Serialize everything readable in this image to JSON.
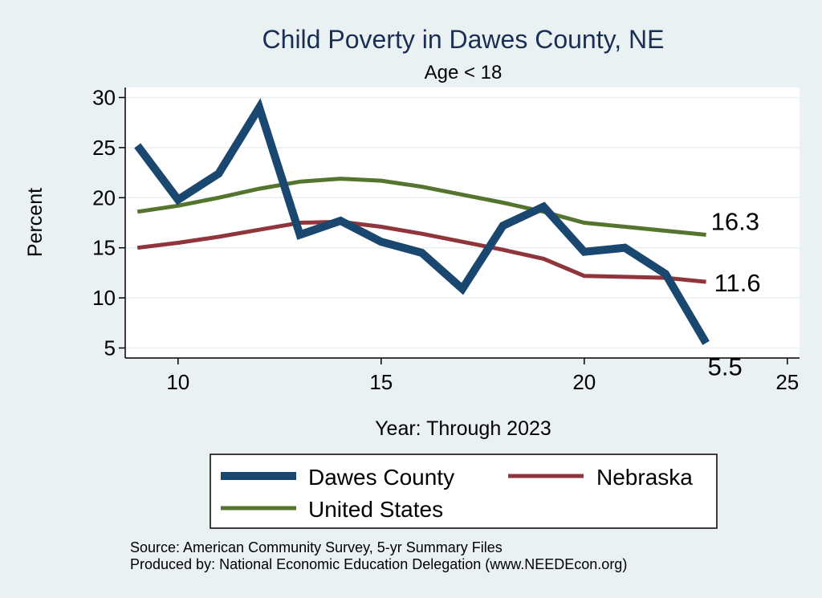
{
  "chart_data": {
    "type": "line",
    "title": "Child Poverty in Dawes County, NE",
    "subtitle": "Age < 18",
    "xlabel": "Year: Through 2023",
    "ylabel": "Percent",
    "xlim": [
      8.7,
      25.3
    ],
    "ylim": [
      4.0,
      31.0
    ],
    "xticks": [
      10,
      15,
      20,
      25
    ],
    "yticks": [
      5,
      10,
      15,
      20,
      25,
      30
    ],
    "x": [
      9,
      10,
      11,
      12,
      13,
      14,
      15,
      16,
      17,
      18,
      19,
      20,
      21,
      22,
      23
    ],
    "series": [
      {
        "name": "Dawes County",
        "color": "#1a476f",
        "values": [
          25.2,
          19.8,
          22.4,
          29.0,
          16.3,
          17.7,
          15.6,
          14.5,
          10.9,
          17.2,
          19.1,
          14.6,
          15.0,
          12.4,
          5.5
        ],
        "end_label": "5.5"
      },
      {
        "name": "Nebraska",
        "color": "#90353b",
        "values": [
          15.0,
          15.5,
          16.1,
          16.8,
          17.5,
          17.6,
          17.1,
          16.4,
          15.6,
          14.8,
          13.9,
          12.2,
          12.1,
          12.0,
          11.6
        ],
        "end_label": "11.6"
      },
      {
        "name": "United States",
        "color": "#55752f",
        "values": [
          18.6,
          19.2,
          20.0,
          20.9,
          21.6,
          21.9,
          21.7,
          21.1,
          20.3,
          19.5,
          18.6,
          17.5,
          17.1,
          16.7,
          16.3
        ],
        "end_label": "16.3"
      }
    ],
    "legend": [
      {
        "name": "Dawes County",
        "color": "#1a476f"
      },
      {
        "name": "Nebraska",
        "color": "#90353b"
      },
      {
        "name": "United States",
        "color": "#55752f"
      }
    ],
    "legend_position": "bottom",
    "grid": true
  },
  "notes": {
    "source": "Source: American Community Survey, 5-yr Summary Files",
    "produced": "Produced by: National Economic Education Delegation (www.NEEDEcon.org)"
  }
}
